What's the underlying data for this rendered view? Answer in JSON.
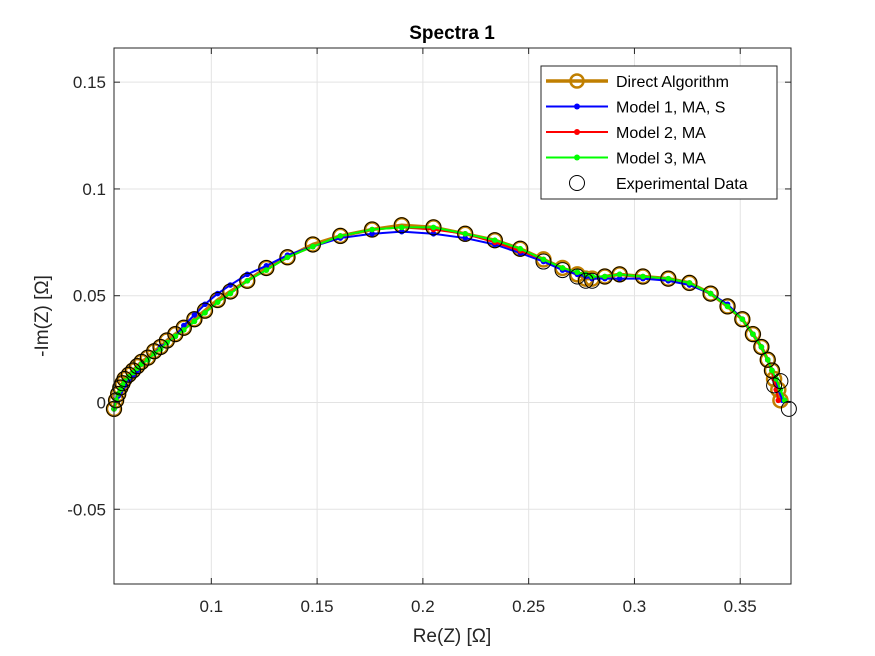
{
  "chart_data": {
    "type": "scatter",
    "title": "Spectra 1",
    "xlabel": "Re(Z) [Ω]",
    "ylabel": "-Im(Z) [Ω]",
    "xlim": [
      0.054,
      0.374
    ],
    "ylim": [
      -0.085,
      0.166
    ],
    "xticks": [
      0.1,
      0.15,
      0.2,
      0.25,
      0.3,
      0.35
    ],
    "xtick_labels": [
      "0.1",
      "0.15",
      "0.2",
      "0.25",
      "0.3",
      "0.35"
    ],
    "yticks": [
      -0.05,
      0,
      0.05,
      0.1,
      0.15
    ],
    "ytick_labels": [
      "-0.05",
      "0",
      "0.05",
      "0.1",
      "0.15"
    ],
    "grid": true,
    "legend_position": "top-right",
    "series": [
      {
        "name": "Direct Algorithm",
        "style": "line-open-circle",
        "color": "#C07F00",
        "points": [
          [
            0.054,
            -0.003
          ],
          [
            0.055,
            0.001
          ],
          [
            0.056,
            0.004
          ],
          [
            0.057,
            0.007
          ],
          [
            0.058,
            0.009
          ],
          [
            0.059,
            0.011
          ],
          [
            0.061,
            0.013
          ],
          [
            0.063,
            0.015
          ],
          [
            0.065,
            0.017
          ],
          [
            0.067,
            0.019
          ],
          [
            0.07,
            0.021
          ],
          [
            0.073,
            0.024
          ],
          [
            0.076,
            0.026
          ],
          [
            0.079,
            0.029
          ],
          [
            0.083,
            0.032
          ],
          [
            0.087,
            0.035
          ],
          [
            0.092,
            0.039
          ],
          [
            0.097,
            0.043
          ],
          [
            0.103,
            0.048
          ],
          [
            0.109,
            0.052
          ],
          [
            0.117,
            0.057
          ],
          [
            0.126,
            0.063
          ],
          [
            0.136,
            0.068
          ],
          [
            0.148,
            0.074
          ],
          [
            0.161,
            0.078
          ],
          [
            0.176,
            0.081
          ],
          [
            0.19,
            0.083
          ],
          [
            0.205,
            0.082
          ],
          [
            0.22,
            0.079
          ],
          [
            0.234,
            0.076
          ],
          [
            0.246,
            0.072
          ],
          [
            0.257,
            0.067
          ],
          [
            0.266,
            0.063
          ],
          [
            0.273,
            0.06
          ],
          [
            0.277,
            0.058
          ],
          [
            0.28,
            0.058
          ],
          [
            0.286,
            0.059
          ],
          [
            0.293,
            0.06
          ],
          [
            0.304,
            0.059
          ],
          [
            0.316,
            0.058
          ],
          [
            0.326,
            0.056
          ],
          [
            0.336,
            0.051
          ],
          [
            0.344,
            0.045
          ],
          [
            0.351,
            0.039
          ],
          [
            0.356,
            0.032
          ],
          [
            0.36,
            0.026
          ],
          [
            0.363,
            0.02
          ],
          [
            0.365,
            0.015
          ],
          [
            0.366,
            0.011
          ],
          [
            0.368,
            0.006
          ],
          [
            0.369,
            0.001
          ]
        ]
      },
      {
        "name": "Model 1, MA, S",
        "style": "line-dot",
        "color": "#0000FF",
        "points": [
          [
            0.054,
            -0.003
          ],
          [
            0.055,
            0.001
          ],
          [
            0.056,
            0.003
          ],
          [
            0.057,
            0.005
          ],
          [
            0.058,
            0.007
          ],
          [
            0.059,
            0.008
          ],
          [
            0.061,
            0.011
          ],
          [
            0.063,
            0.013
          ],
          [
            0.065,
            0.015
          ],
          [
            0.067,
            0.018
          ],
          [
            0.07,
            0.02
          ],
          [
            0.073,
            0.023
          ],
          [
            0.076,
            0.026
          ],
          [
            0.079,
            0.028
          ],
          [
            0.083,
            0.031
          ],
          [
            0.087,
            0.036
          ],
          [
            0.092,
            0.041
          ],
          [
            0.097,
            0.046
          ],
          [
            0.103,
            0.051
          ],
          [
            0.109,
            0.055
          ],
          [
            0.117,
            0.06
          ],
          [
            0.126,
            0.064
          ],
          [
            0.136,
            0.069
          ],
          [
            0.148,
            0.073
          ],
          [
            0.161,
            0.077
          ],
          [
            0.176,
            0.079
          ],
          [
            0.19,
            0.08
          ],
          [
            0.205,
            0.079
          ],
          [
            0.22,
            0.077
          ],
          [
            0.234,
            0.074
          ],
          [
            0.246,
            0.07
          ],
          [
            0.257,
            0.066
          ],
          [
            0.266,
            0.062
          ],
          [
            0.273,
            0.06
          ],
          [
            0.277,
            0.059
          ],
          [
            0.28,
            0.058
          ],
          [
            0.286,
            0.058
          ],
          [
            0.293,
            0.058
          ],
          [
            0.304,
            0.058
          ],
          [
            0.316,
            0.057
          ],
          [
            0.326,
            0.055
          ],
          [
            0.336,
            0.051
          ],
          [
            0.344,
            0.046
          ],
          [
            0.351,
            0.039
          ],
          [
            0.356,
            0.032
          ],
          [
            0.36,
            0.026
          ],
          [
            0.363,
            0.02
          ],
          [
            0.365,
            0.015
          ],
          [
            0.366,
            0.011
          ],
          [
            0.368,
            0.006
          ],
          [
            0.37,
            0.001
          ]
        ]
      },
      {
        "name": "Model 2, MA",
        "style": "line-dot",
        "color": "#FF0000",
        "points": [
          [
            0.054,
            -0.003
          ],
          [
            0.055,
            0.001
          ],
          [
            0.056,
            0.004
          ],
          [
            0.057,
            0.006
          ],
          [
            0.058,
            0.008
          ],
          [
            0.059,
            0.01
          ],
          [
            0.061,
            0.012
          ],
          [
            0.063,
            0.014
          ],
          [
            0.065,
            0.016
          ],
          [
            0.067,
            0.018
          ],
          [
            0.07,
            0.02
          ],
          [
            0.073,
            0.023
          ],
          [
            0.076,
            0.025
          ],
          [
            0.079,
            0.028
          ],
          [
            0.083,
            0.031
          ],
          [
            0.087,
            0.034
          ],
          [
            0.092,
            0.038
          ],
          [
            0.097,
            0.042
          ],
          [
            0.103,
            0.047
          ],
          [
            0.109,
            0.051
          ],
          [
            0.117,
            0.057
          ],
          [
            0.126,
            0.062
          ],
          [
            0.136,
            0.068
          ],
          [
            0.148,
            0.073
          ],
          [
            0.161,
            0.078
          ],
          [
            0.176,
            0.081
          ],
          [
            0.19,
            0.082
          ],
          [
            0.205,
            0.081
          ],
          [
            0.22,
            0.079
          ],
          [
            0.234,
            0.075
          ],
          [
            0.246,
            0.071
          ],
          [
            0.257,
            0.067
          ],
          [
            0.266,
            0.063
          ],
          [
            0.273,
            0.061
          ],
          [
            0.277,
            0.06
          ],
          [
            0.28,
            0.059
          ],
          [
            0.286,
            0.059
          ],
          [
            0.293,
            0.06
          ],
          [
            0.304,
            0.059
          ],
          [
            0.316,
            0.058
          ],
          [
            0.326,
            0.056
          ],
          [
            0.336,
            0.051
          ],
          [
            0.344,
            0.045
          ],
          [
            0.351,
            0.039
          ],
          [
            0.356,
            0.032
          ],
          [
            0.36,
            0.026
          ],
          [
            0.363,
            0.02
          ],
          [
            0.365,
            0.015
          ],
          [
            0.366,
            0.011
          ],
          [
            0.367,
            0.006
          ],
          [
            0.368,
            0.001
          ]
        ]
      },
      {
        "name": "Model 3, MA",
        "style": "line-dot",
        "color": "#00FF00",
        "points": [
          [
            0.054,
            -0.003
          ],
          [
            0.055,
            0.001
          ],
          [
            0.056,
            0.004
          ],
          [
            0.057,
            0.006
          ],
          [
            0.058,
            0.008
          ],
          [
            0.059,
            0.01
          ],
          [
            0.061,
            0.012
          ],
          [
            0.063,
            0.014
          ],
          [
            0.065,
            0.016
          ],
          [
            0.067,
            0.018
          ],
          [
            0.07,
            0.02
          ],
          [
            0.073,
            0.023
          ],
          [
            0.076,
            0.025
          ],
          [
            0.079,
            0.028
          ],
          [
            0.083,
            0.031
          ],
          [
            0.087,
            0.034
          ],
          [
            0.092,
            0.038
          ],
          [
            0.097,
            0.042
          ],
          [
            0.103,
            0.047
          ],
          [
            0.109,
            0.051
          ],
          [
            0.117,
            0.057
          ],
          [
            0.126,
            0.062
          ],
          [
            0.136,
            0.068
          ],
          [
            0.148,
            0.073
          ],
          [
            0.161,
            0.078
          ],
          [
            0.176,
            0.081
          ],
          [
            0.19,
            0.082
          ],
          [
            0.205,
            0.082
          ],
          [
            0.22,
            0.079
          ],
          [
            0.234,
            0.076
          ],
          [
            0.246,
            0.072
          ],
          [
            0.257,
            0.067
          ],
          [
            0.266,
            0.063
          ],
          [
            0.273,
            0.061
          ],
          [
            0.277,
            0.06
          ],
          [
            0.28,
            0.059
          ],
          [
            0.286,
            0.059
          ],
          [
            0.293,
            0.06
          ],
          [
            0.304,
            0.059
          ],
          [
            0.316,
            0.058
          ],
          [
            0.326,
            0.056
          ],
          [
            0.336,
            0.051
          ],
          [
            0.344,
            0.045
          ],
          [
            0.351,
            0.039
          ],
          [
            0.356,
            0.032
          ],
          [
            0.36,
            0.026
          ],
          [
            0.363,
            0.02
          ],
          [
            0.365,
            0.015
          ],
          [
            0.367,
            0.011
          ],
          [
            0.369,
            0.006
          ],
          [
            0.371,
            0.001
          ]
        ]
      },
      {
        "name": "Experimental Data",
        "style": "open-circle",
        "color": "#000000",
        "points": [
          [
            0.054,
            -0.003
          ],
          [
            0.055,
            0.001
          ],
          [
            0.056,
            0.004
          ],
          [
            0.057,
            0.007
          ],
          [
            0.058,
            0.009
          ],
          [
            0.059,
            0.011
          ],
          [
            0.061,
            0.013
          ],
          [
            0.063,
            0.015
          ],
          [
            0.065,
            0.017
          ],
          [
            0.067,
            0.019
          ],
          [
            0.07,
            0.021
          ],
          [
            0.073,
            0.024
          ],
          [
            0.076,
            0.026
          ],
          [
            0.079,
            0.029
          ],
          [
            0.083,
            0.032
          ],
          [
            0.087,
            0.035
          ],
          [
            0.092,
            0.039
          ],
          [
            0.097,
            0.043
          ],
          [
            0.103,
            0.048
          ],
          [
            0.109,
            0.052
          ],
          [
            0.117,
            0.057
          ],
          [
            0.126,
            0.063
          ],
          [
            0.136,
            0.068
          ],
          [
            0.148,
            0.074
          ],
          [
            0.161,
            0.078
          ],
          [
            0.176,
            0.081
          ],
          [
            0.19,
            0.083
          ],
          [
            0.205,
            0.082
          ],
          [
            0.22,
            0.079
          ],
          [
            0.234,
            0.076
          ],
          [
            0.246,
            0.072
          ],
          [
            0.257,
            0.066
          ],
          [
            0.266,
            0.062
          ],
          [
            0.273,
            0.059
          ],
          [
            0.277,
            0.057
          ],
          [
            0.28,
            0.057
          ],
          [
            0.286,
            0.059
          ],
          [
            0.293,
            0.06
          ],
          [
            0.304,
            0.059
          ],
          [
            0.316,
            0.058
          ],
          [
            0.326,
            0.056
          ],
          [
            0.336,
            0.051
          ],
          [
            0.344,
            0.045
          ],
          [
            0.351,
            0.039
          ],
          [
            0.356,
            0.032
          ],
          [
            0.36,
            0.026
          ],
          [
            0.363,
            0.02
          ],
          [
            0.365,
            0.015
          ],
          [
            0.366,
            0.008
          ],
          [
            0.369,
            0.01
          ],
          [
            0.373,
            -0.003
          ]
        ]
      }
    ]
  }
}
